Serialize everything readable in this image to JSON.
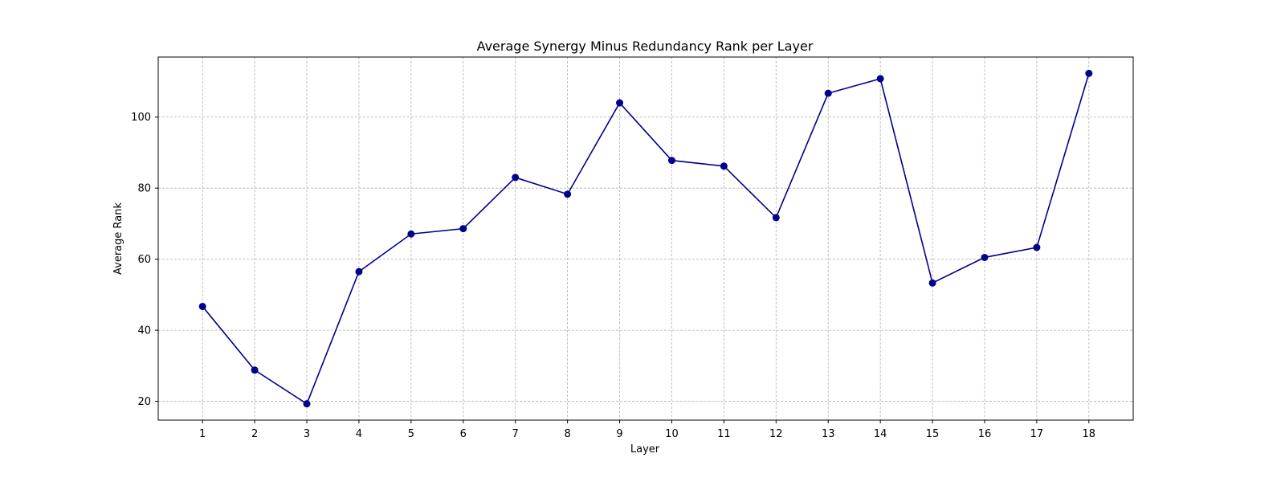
{
  "chart_data": {
    "type": "line",
    "title": "Average Synergy Minus Redundancy Rank per Layer",
    "xlabel": "Layer",
    "ylabel": "Average Rank",
    "x": [
      1,
      2,
      3,
      4,
      5,
      6,
      7,
      8,
      9,
      10,
      11,
      12,
      13,
      14,
      15,
      16,
      17,
      18
    ],
    "series": [
      {
        "values": [
          46.7,
          28.8,
          19.3,
          56.5,
          67.1,
          68.6,
          83.0,
          78.3,
          104.0,
          87.8,
          86.2,
          71.7,
          106.7,
          110.8,
          53.3,
          60.5,
          63.3,
          112.3
        ],
        "color": "#00008b",
        "marker": "circle"
      }
    ],
    "xticks": [
      "1",
      "2",
      "3",
      "4",
      "5",
      "6",
      "7",
      "8",
      "9",
      "10",
      "11",
      "12",
      "13",
      "14",
      "15",
      "16",
      "17",
      "18"
    ],
    "yticks": [
      20,
      40,
      60,
      80,
      100
    ],
    "xlim": [
      0.15,
      18.85
    ],
    "ylim": [
      14.7,
      116.9
    ],
    "grid": true,
    "legend": "none"
  }
}
